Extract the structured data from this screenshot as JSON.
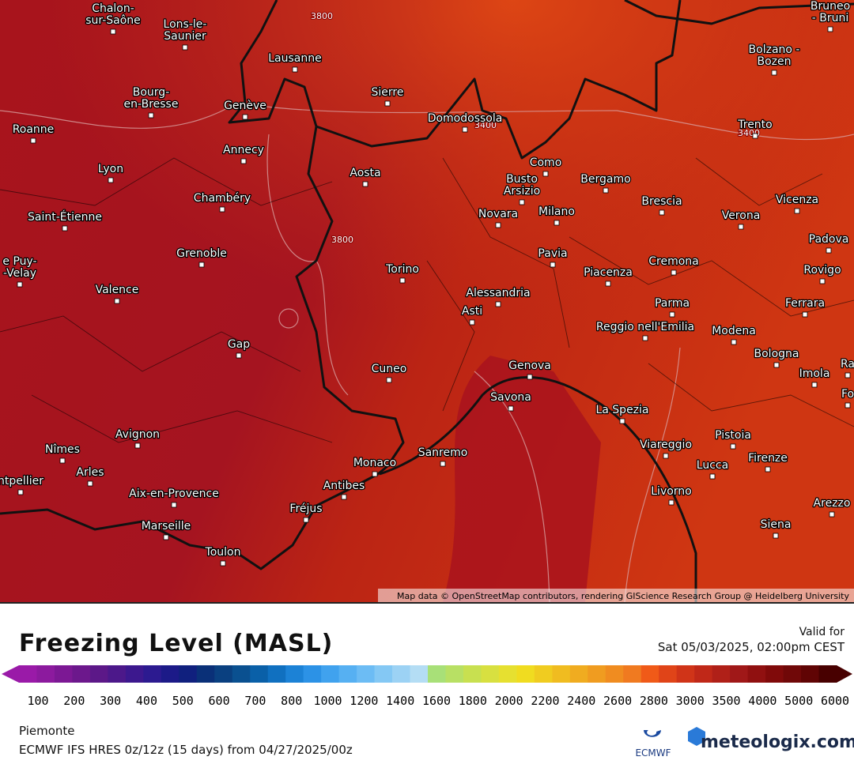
{
  "map": {
    "cities": [
      [
        "Chalon-",
        "sur-Saône"
      ],
      [
        "Lons-le-",
        "Saunier"
      ],
      [
        "Lausanne"
      ],
      [
        "Bourg-",
        "en-Bresse"
      ],
      [
        "Genève"
      ],
      [
        "Roanne"
      ],
      [
        "Sierre"
      ],
      [
        "Domodossola"
      ],
      [
        "Annecy"
      ],
      [
        "Lyon"
      ],
      [
        "Aosta"
      ],
      [
        "Como"
      ],
      [
        "Busto",
        "Arsizio"
      ],
      [
        "Bergamo"
      ],
      [
        "Chambéry"
      ],
      [
        "Brescia"
      ],
      [
        "Saint-Étienne"
      ],
      [
        "Novara"
      ],
      [
        "Milano"
      ],
      [
        "Verona"
      ],
      [
        "Vicenza"
      ],
      [
        "Padova"
      ],
      [
        "Grenoble"
      ],
      [
        "Torino"
      ],
      [
        "Pavia"
      ],
      [
        "Cremona"
      ],
      [
        "Piacenza"
      ],
      [
        "Rovigo"
      ],
      [
        "e Puy-",
        "-Velay"
      ],
      [
        "Valence"
      ],
      [
        "Alessandria"
      ],
      [
        "Asti"
      ],
      [
        "Parma"
      ],
      [
        "Ferrara"
      ],
      [
        "Reggio nell'Emilia"
      ],
      [
        "Modena"
      ],
      [
        "Gap"
      ],
      [
        "Bologna"
      ],
      [
        "Cuneo"
      ],
      [
        "Genova"
      ],
      [
        "Imola"
      ],
      [
        "Ra"
      ],
      [
        "Savona"
      ],
      [
        "Fo"
      ],
      [
        "La Spezia"
      ],
      [
        "Avignon"
      ],
      [
        "Pistoia"
      ],
      [
        "Nîmes"
      ],
      [
        "Viareggio"
      ],
      [
        "Sanremo"
      ],
      [
        "Lucca"
      ],
      [
        "Firenze"
      ],
      [
        "Monaco"
      ],
      [
        "Arles"
      ],
      [
        "ntpellier"
      ],
      [
        "Antibes"
      ],
      [
        "Aix-en-Provence"
      ],
      [
        "Livorno"
      ],
      [
        "Arezzo"
      ],
      [
        "Fréjus"
      ],
      [
        "Siena"
      ],
      [
        "Marseille"
      ],
      [
        "Toulon"
      ],
      [
        "Bolzano -",
        "Bozen"
      ],
      [
        "Trento"
      ],
      [
        "Bruneo",
        "- Bruni"
      ]
    ],
    "contour_labels": [
      "3800",
      "3400",
      "3400",
      "3800"
    ],
    "attribution": "Map data © OpenStreetMap contributors, rendering GIScience Research Group @ Heidelberg University"
  },
  "legend": {
    "title": "Freezing Level (MASL)",
    "valid_label": "Valid for",
    "valid_time": "Sat 05/03/2025, 02:00pm CEST",
    "ticks": [
      100,
      200,
      300,
      400,
      500,
      600,
      700,
      800,
      1000,
      1200,
      1400,
      1600,
      1800,
      2000,
      2200,
      2400,
      2600,
      2800,
      3000,
      3500,
      4000,
      5000,
      6000
    ],
    "colors": [
      "#9a1aa8",
      "#8c1a9e",
      "#7c1894",
      "#6c188c",
      "#5c1888",
      "#4c188a",
      "#3c188e",
      "#2c1a90",
      "#1c1a88",
      "#10207e",
      "#0a3078",
      "#0a4080",
      "#0a5090",
      "#0a60a8",
      "#1070c0",
      "#1c82d6",
      "#2c92e6",
      "#40a2ee",
      "#56b0f2",
      "#6cbcf4",
      "#84c8f4",
      "#9cd2f4",
      "#b4ddf4",
      "#a8e078",
      "#b8e064",
      "#c8e050",
      "#d8e040",
      "#e6e030",
      "#f0dc20",
      "#f0cc20",
      "#f0bc20",
      "#f0ac20",
      "#f09c20",
      "#f08c20",
      "#f07a20",
      "#f05a18",
      "#e04418",
      "#d03418",
      "#c02818",
      "#b02018",
      "#a01818",
      "#901010",
      "#800a0a",
      "#700808",
      "#600404",
      "#480000"
    ]
  },
  "footer": {
    "region": "Piemonte",
    "model": "ECMWF IFS HRES 0z/12z (15 days) from 04/27/2025/00z",
    "ecmwf": "ECMWF",
    "brand": "meteologix.com"
  }
}
